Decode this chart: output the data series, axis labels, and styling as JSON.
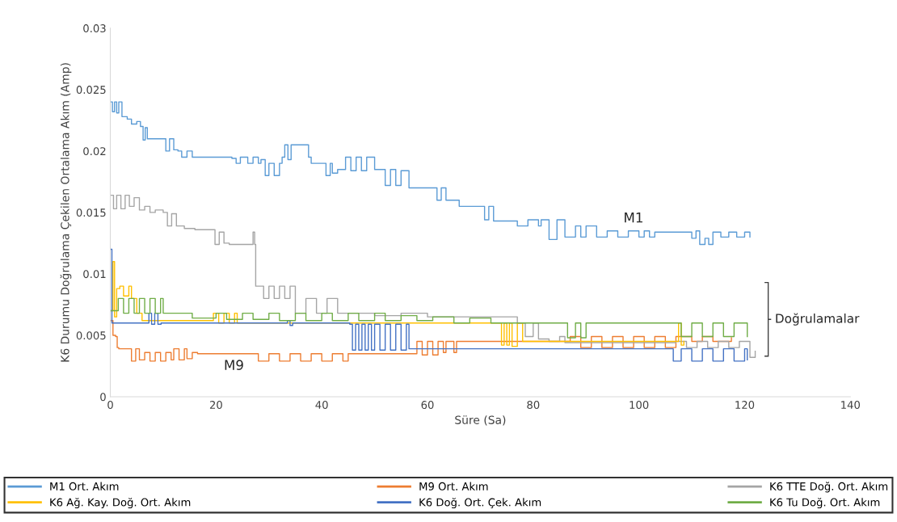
{
  "chart_data": {
    "type": "step",
    "xlabel": "Süre (Sa)",
    "ylabel": "K6 Durumu Doğrulama Çekilen Ortalama Akım (Amp)",
    "xlim": [
      0,
      140
    ],
    "xticks": [
      0,
      20,
      40,
      60,
      80,
      100,
      120,
      140
    ],
    "ylim": [
      0,
      0.03
    ],
    "yticks": [
      0,
      0.005,
      0.01,
      0.015,
      0.02,
      0.025,
      0.03
    ],
    "grid": false,
    "legend": "bottom",
    "annotations": [
      "M1",
      "M9",
      "Doğrulamalar"
    ],
    "series": [
      {
        "name": "M1 Ort. Akım",
        "color": "#5b9bd5",
        "x": [
          0,
          0.4,
          0.8,
          1.2,
          1.6,
          2.2,
          3.2,
          4,
          5,
          5.7,
          6.2,
          6.6,
          7,
          9.8,
          10.5,
          11.2,
          12,
          12.8,
          13.5,
          14.5,
          15.5,
          23,
          23.8,
          24.6,
          25.5,
          26,
          27,
          28,
          28.5,
          29.3,
          30,
          31,
          32,
          32.5,
          33,
          33.6,
          34.2,
          37,
          37.5,
          38,
          40,
          40.8,
          41.6,
          42,
          43,
          44.5,
          45.5,
          46.5,
          47.5,
          48.5,
          50,
          51,
          52,
          53,
          54,
          55,
          56.5,
          61,
          61.8,
          62.6,
          63.5,
          66,
          70,
          70.8,
          71.6,
          72.5,
          75.5,
          77,
          79,
          81,
          81.5,
          83,
          84.5,
          86,
          88,
          89,
          90,
          92,
          94,
          96,
          98,
          100,
          101,
          102,
          103,
          108,
          110,
          110.8,
          111.5,
          112.5,
          113.2,
          114,
          115.5,
          117,
          118.5,
          120,
          121
        ],
        "values": [
          0.024,
          0.0232,
          0.024,
          0.0231,
          0.024,
          0.0228,
          0.0226,
          0.0222,
          0.0224,
          0.022,
          0.0209,
          0.0219,
          0.021,
          0.021,
          0.02,
          0.021,
          0.0201,
          0.02,
          0.0195,
          0.02,
          0.0195,
          0.0194,
          0.019,
          0.0195,
          0.0195,
          0.019,
          0.0195,
          0.019,
          0.0193,
          0.018,
          0.019,
          0.018,
          0.019,
          0.0195,
          0.0205,
          0.0193,
          0.0205,
          0.0205,
          0.0195,
          0.019,
          0.019,
          0.018,
          0.019,
          0.0182,
          0.0185,
          0.0195,
          0.0184,
          0.0195,
          0.0184,
          0.0195,
          0.0185,
          0.0185,
          0.0172,
          0.0185,
          0.0172,
          0.0184,
          0.017,
          0.017,
          0.016,
          0.017,
          0.016,
          0.0155,
          0.0155,
          0.0144,
          0.0155,
          0.0143,
          0.0143,
          0.0139,
          0.0144,
          0.0139,
          0.0144,
          0.0128,
          0.0144,
          0.013,
          0.0139,
          0.013,
          0.0139,
          0.013,
          0.0135,
          0.013,
          0.0135,
          0.013,
          0.0135,
          0.013,
          0.0134,
          0.0134,
          0.0129,
          0.0135,
          0.0124,
          0.0129,
          0.0124,
          0.0134,
          0.013,
          0.0134,
          0.013,
          0.0134,
          0.013
        ]
      },
      {
        "name": "M9 Ort. Akım",
        "color": "#ed7d31",
        "x": [
          0,
          0.5,
          1,
          1.3,
          1.6,
          3.5,
          4,
          4.8,
          5.5,
          6.5,
          7.5,
          8.5,
          9.5,
          10.5,
          11.5,
          12,
          13,
          14,
          14.5,
          15.5,
          16.5,
          27,
          28,
          30,
          32,
          34,
          36,
          38,
          40,
          42,
          44,
          45,
          57,
          58,
          59,
          60,
          61,
          62,
          63,
          63.5,
          65,
          65.5,
          86,
          87,
          89,
          91,
          93,
          95,
          97,
          99,
          101,
          103,
          105,
          107,
          110,
          112,
          114,
          117.5
        ],
        "values": [
          0.0062,
          0.005,
          0.0049,
          0.004,
          0.0039,
          0.0039,
          0.0029,
          0.0039,
          0.003,
          0.0036,
          0.0029,
          0.0036,
          0.0029,
          0.0036,
          0.003,
          0.0039,
          0.003,
          0.0039,
          0.0031,
          0.0036,
          0.0035,
          0.0035,
          0.0029,
          0.0035,
          0.0029,
          0.0035,
          0.0029,
          0.0035,
          0.0029,
          0.0035,
          0.0029,
          0.0035,
          0.0035,
          0.0045,
          0.0034,
          0.0045,
          0.0034,
          0.0045,
          0.0036,
          0.0045,
          0.0036,
          0.0045,
          0.0045,
          0.0049,
          0.004,
          0.0049,
          0.004,
          0.0049,
          0.004,
          0.0049,
          0.004,
          0.0049,
          0.004,
          0.0049,
          0.0045,
          0.0049,
          0.0045,
          0.0048
        ]
      },
      {
        "name": "K6 TTE Doğ. Ort. Akım",
        "color": "#a5a5a5",
        "x": [
          0,
          0.6,
          1.2,
          2,
          2.8,
          3.6,
          4.5,
          5.5,
          6.5,
          7.5,
          8.5,
          10,
          10.8,
          11.6,
          12.5,
          14,
          16,
          19,
          19.8,
          20.6,
          21.5,
          22.5,
          27,
          27.3,
          27.5,
          29,
          30,
          31,
          32,
          33,
          34,
          35,
          37,
          39,
          41,
          43,
          45,
          50,
          55,
          60,
          75,
          77,
          78.5,
          80,
          81,
          83,
          85,
          86,
          107,
          109,
          111,
          113,
          115,
          117,
          119,
          121,
          122
        ],
        "values": [
          0.0164,
          0.0153,
          0.0164,
          0.0153,
          0.0164,
          0.0155,
          0.0162,
          0.0152,
          0.0155,
          0.015,
          0.0152,
          0.015,
          0.0139,
          0.0149,
          0.0139,
          0.0137,
          0.0136,
          0.0136,
          0.0124,
          0.0134,
          0.0125,
          0.0124,
          0.0134,
          0.0124,
          0.009,
          0.008,
          0.009,
          0.008,
          0.009,
          0.008,
          0.009,
          0.0068,
          0.008,
          0.0068,
          0.008,
          0.0068,
          0.0068,
          0.0066,
          0.0068,
          0.0065,
          0.0065,
          0.006,
          0.0049,
          0.006,
          0.0047,
          0.0045,
          0.0049,
          0.0044,
          0.0045,
          0.004,
          0.0045,
          0.004,
          0.0045,
          0.004,
          0.0045,
          0.0032,
          0.0037
        ]
      },
      {
        "name": "K6 Ağ. Kay. Doğ. Ort. Akım",
        "color": "#ffc000",
        "x": [
          0,
          0.5,
          0.8,
          1.2,
          1.8,
          2.5,
          3.5,
          4,
          5,
          6,
          19,
          19.5,
          20.5,
          21.5,
          22.5,
          23.5,
          24,
          73.5,
          74,
          74.5,
          75,
          75.5,
          76,
          77,
          78,
          107,
          107.5,
          108,
          108.5
        ],
        "values": [
          0.007,
          0.011,
          0.0065,
          0.0088,
          0.009,
          0.0082,
          0.009,
          0.008,
          0.0068,
          0.0062,
          0.0062,
          0.0068,
          0.006,
          0.0068,
          0.006,
          0.0068,
          0.006,
          0.006,
          0.0042,
          0.006,
          0.0042,
          0.006,
          0.0041,
          0.006,
          0.0045,
          0.0045,
          0.006,
          0.0042,
          0.0045
        ]
      },
      {
        "name": "K6 Doğ. Ort. Çek. Akım",
        "color": "#4472c4",
        "x": [
          0,
          0.3,
          7.3,
          7.8,
          8.4,
          9,
          9.6,
          33.5,
          34,
          34.5,
          45.3,
          45.8,
          46.4,
          47,
          47.6,
          48.2,
          48.8,
          49.4,
          50,
          51,
          52,
          53,
          54,
          55,
          56,
          56.5,
          106,
          106.5,
          108,
          110,
          112,
          114,
          116,
          118,
          120,
          120.5
        ],
        "values": [
          0.012,
          0.006,
          0.0068,
          0.0059,
          0.0068,
          0.0059,
          0.006,
          0.0062,
          0.0058,
          0.006,
          0.0059,
          0.0038,
          0.0059,
          0.0038,
          0.0059,
          0.0038,
          0.0059,
          0.0038,
          0.0059,
          0.0038,
          0.0059,
          0.0038,
          0.0059,
          0.0038,
          0.0059,
          0.0039,
          0.0039,
          0.0029,
          0.0039,
          0.0029,
          0.0039,
          0.0029,
          0.0039,
          0.0029,
          0.0039,
          0.003
        ]
      },
      {
        "name": "K6 Tu Doğ. Ort. Akım",
        "color": "#70ad47",
        "x": [
          0,
          1.5,
          2.5,
          3.5,
          4.5,
          5.5,
          6.5,
          7.5,
          8.5,
          9.5,
          10,
          15,
          15.5,
          20,
          22,
          25,
          27,
          30,
          32,
          35,
          37,
          40,
          42,
          45,
          47,
          50,
          52,
          55,
          58,
          61,
          65,
          68,
          72,
          86,
          86.5,
          88,
          89,
          90,
          106.5,
          108,
          110,
          112,
          114,
          116,
          118,
          120.5
        ],
        "values": [
          0.007,
          0.008,
          0.0068,
          0.008,
          0.0068,
          0.008,
          0.0068,
          0.008,
          0.0068,
          0.008,
          0.0068,
          0.0068,
          0.0064,
          0.0068,
          0.0063,
          0.0068,
          0.0063,
          0.0068,
          0.0062,
          0.0068,
          0.0062,
          0.0068,
          0.0062,
          0.0068,
          0.0062,
          0.0068,
          0.0062,
          0.0066,
          0.0062,
          0.0065,
          0.006,
          0.0064,
          0.006,
          0.006,
          0.0048,
          0.006,
          0.0048,
          0.006,
          0.006,
          0.0049,
          0.006,
          0.0049,
          0.006,
          0.0049,
          0.006,
          0.0049
        ]
      }
    ]
  }
}
